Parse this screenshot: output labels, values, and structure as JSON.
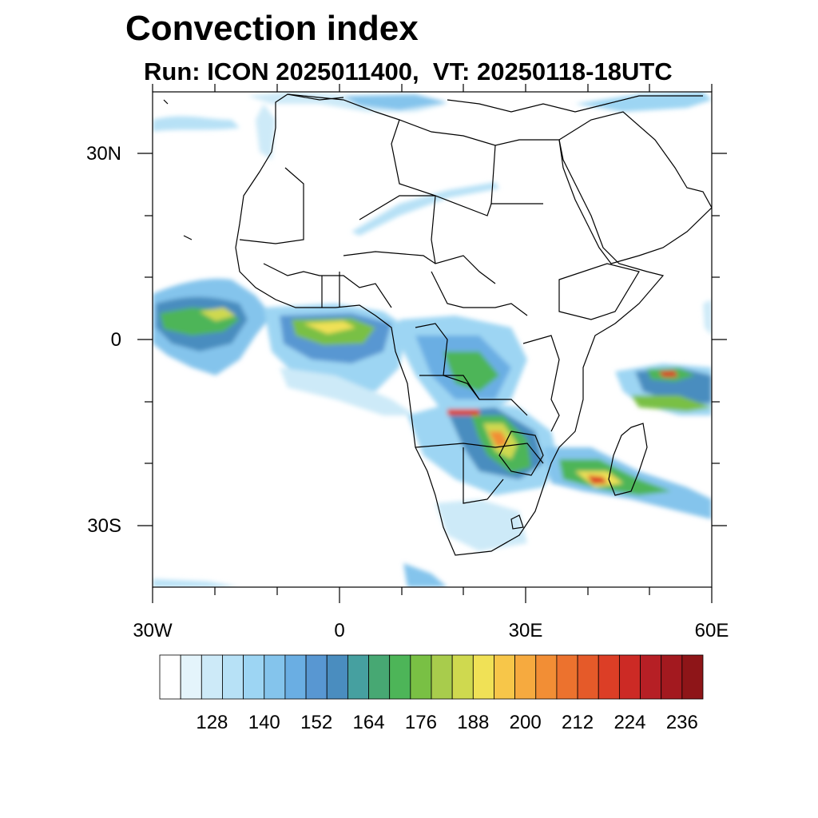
{
  "header": {
    "title": "Convection index",
    "subtitle": "Run: ICON 2025011400,  VT: 20250118-18UTC"
  },
  "map": {
    "lat_labels": [
      "30N",
      "0",
      "30S"
    ],
    "lon_labels": [
      "30W",
      "0",
      "30E",
      "60E"
    ],
    "lon_range": [
      -30,
      60
    ],
    "lat_range": [
      -40,
      40
    ]
  },
  "colorbar": {
    "labels": [
      "128",
      "140",
      "152",
      "164",
      "176",
      "188",
      "200",
      "212",
      "224",
      "236"
    ],
    "colors": [
      "#ffffff",
      "#e4f4fb",
      "#cdeaf8",
      "#b7e1f6",
      "#9dd5f3",
      "#84c4ec",
      "#6aaee3",
      "#5897d2",
      "#4a8dbf",
      "#46a0a0",
      "#47a873",
      "#4db558",
      "#79c044",
      "#a8cc4c",
      "#cfd94f",
      "#f0e156",
      "#f7c649",
      "#f6aa3f",
      "#f28e35",
      "#ec722e",
      "#e55a29",
      "#dc3e26",
      "#cc2a25",
      "#b61f25",
      "#a3191f",
      "#8e1518"
    ]
  },
  "chart_data": {
    "type": "heatmap",
    "title": "Convection index",
    "subtitle": "Run: ICON 2025011400,  VT: 20250118-18UTC",
    "x_ticks": [
      "30W",
      "0",
      "30E",
      "60E"
    ],
    "y_ticks": [
      "30N",
      "0",
      "30S"
    ],
    "legend_labels": [
      128,
      140,
      152,
      164,
      176,
      188,
      200,
      212,
      224,
      236
    ],
    "legend_placement": "bottom",
    "regions": [
      {
        "lon": -24,
        "lat": 3,
        "value": 172
      },
      {
        "lon": -15,
        "lat": 6,
        "value": 168
      },
      {
        "lon": 0,
        "lat": 1,
        "value": 176
      },
      {
        "lon": 5,
        "lat": 2,
        "value": 182
      },
      {
        "lon": 23,
        "lat": -14,
        "value": 184
      },
      {
        "lon": 28,
        "lat": -16,
        "value": 198
      },
      {
        "lon": 32,
        "lat": -19,
        "value": 192
      },
      {
        "lon": 40,
        "lat": -23,
        "value": 215
      },
      {
        "lon": 52,
        "lat": -5,
        "value": 220
      },
      {
        "lon": 50,
        "lat": -25,
        "value": 190
      },
      {
        "lon": 8,
        "lat": 26,
        "value": 140
      }
    ]
  }
}
